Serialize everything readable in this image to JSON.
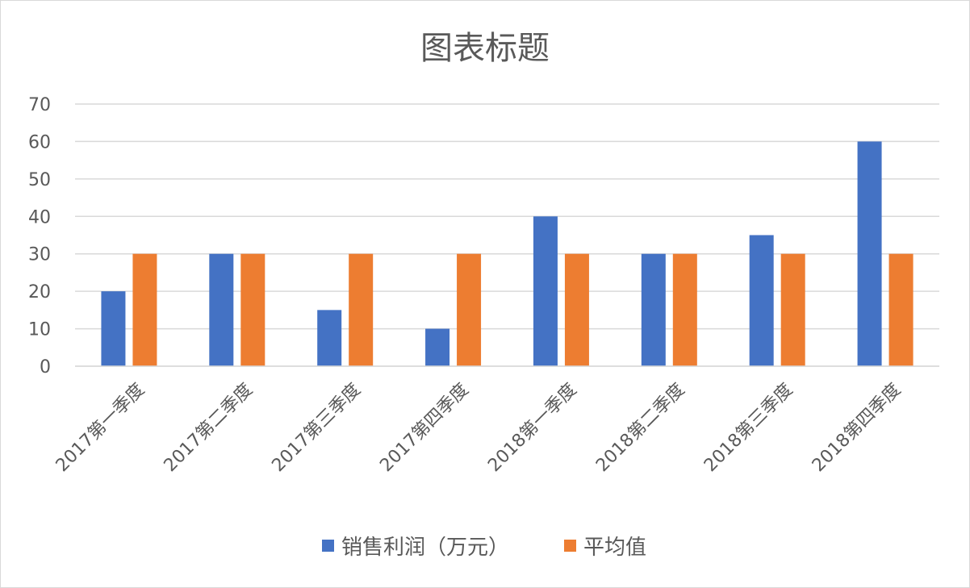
{
  "chart_data": {
    "type": "bar",
    "title": "图表标题",
    "categories": [
      "2017第一季度",
      "2017第二季度",
      "2017第三季度",
      "2017第四季度",
      "2018第一季度",
      "2018第二季度",
      "2018第三季度",
      "2018第四季度"
    ],
    "series": [
      {
        "name": "销售利润（万元）",
        "color": "#4472C4",
        "values": [
          20,
          30,
          15,
          10,
          40,
          30,
          35,
          60
        ]
      },
      {
        "name": "平均值",
        "color": "#ED7D31",
        "values": [
          30,
          30,
          30,
          30,
          30,
          30,
          30,
          30
        ]
      }
    ],
    "ylim": [
      0,
      70
    ],
    "yticks": [
      0,
      10,
      20,
      30,
      40,
      50,
      60,
      70
    ],
    "grid": true,
    "legend_position": "bottom",
    "xlabel": "",
    "ylabel": ""
  }
}
